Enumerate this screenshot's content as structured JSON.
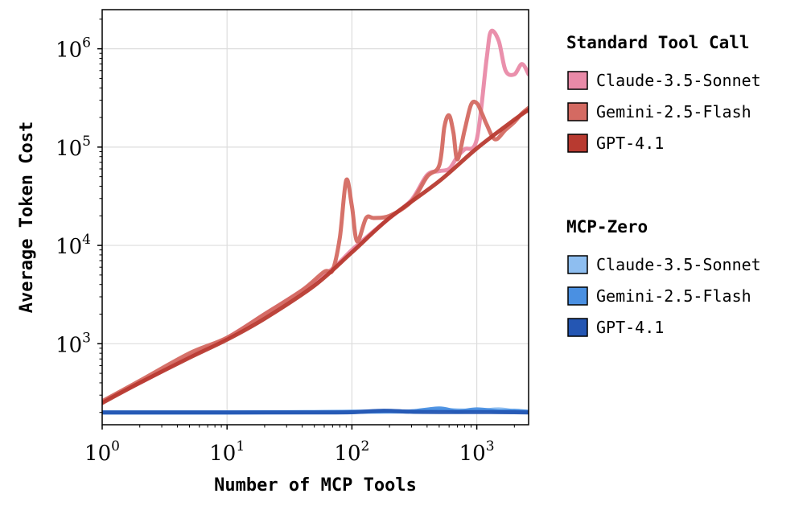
{
  "chart_data": {
    "type": "line",
    "xlabel": "Number of MCP Tools",
    "ylabel": "Average Token Cost",
    "x_scale": "log",
    "y_scale": "log",
    "xlim": [
      1,
      2600
    ],
    "ylim": [
      150,
      2500000
    ],
    "x_ticks": [
      {
        "base": "10",
        "exp": "0",
        "value": 1
      },
      {
        "base": "10",
        "exp": "1",
        "value": 10
      },
      {
        "base": "10",
        "exp": "2",
        "value": 100
      },
      {
        "base": "10",
        "exp": "3",
        "value": 1000
      }
    ],
    "y_ticks": [
      {
        "base": "10",
        "exp": "3",
        "value": 1000
      },
      {
        "base": "10",
        "exp": "4",
        "value": 10000
      },
      {
        "base": "10",
        "exp": "5",
        "value": 100000
      },
      {
        "base": "10",
        "exp": "6",
        "value": 1000000
      }
    ],
    "grid": true,
    "legend_position": "outside-right",
    "legend_groups": [
      {
        "title": "Standard Tool Call",
        "series": [
          {
            "name": "Claude-3.5-Sonnet",
            "color": "#e98aa8",
            "x": [
              1,
              2,
              5,
              10,
              20,
              40,
              70,
              100,
              150,
              200,
              300,
              400,
              500,
              600,
              700,
              800,
              1000,
              1200,
              1300,
              1500,
              1700,
              2000,
              2300,
              2600
            ],
            "y": [
              260,
              400,
              750,
              1150,
              2000,
              3500,
              5800,
              9000,
              14000,
              19000,
              29000,
              52000,
              57000,
              60000,
              80000,
              95000,
              120000,
              800000,
              1500000,
              1200000,
              600000,
              550000,
              700000,
              550000
            ]
          },
          {
            "name": "Gemini-2.5-Flash",
            "color": "#d46a62",
            "x": [
              1,
              2,
              5,
              10,
              20,
              40,
              60,
              70,
              80,
              90,
              100,
              110,
              130,
              150,
              200,
              300,
              400,
              500,
              550,
              600,
              650,
              700,
              800,
              900,
              1000,
              1100,
              1200,
              1400,
              1700,
              2000,
              2300,
              2600
            ],
            "y": [
              260,
              420,
              800,
              1150,
              2000,
              3500,
              5400,
              5600,
              12000,
              46000,
              25000,
              11000,
              19000,
              19000,
              20000,
              28000,
              50000,
              65000,
              160000,
              210000,
              140000,
              75000,
              150000,
              270000,
              280000,
              220000,
              170000,
              120000,
              150000,
              180000,
              220000,
              250000
            ]
          },
          {
            "name": "GPT-4.1",
            "color": "#b83a30",
            "x": [
              1,
              2,
              5,
              10,
              20,
              50,
              100,
              200,
              500,
              1000,
              2000,
              2600
            ],
            "y": [
              250,
              400,
              720,
              1100,
              1800,
              3900,
              8500,
              19000,
              45000,
              97000,
              190000,
              240000
            ]
          }
        ]
      },
      {
        "title": "MCP-Zero",
        "series": [
          {
            "name": "Claude-3.5-Sonnet",
            "color": "#8ebef0",
            "x": [
              1,
              10,
              50,
              100,
              300,
              500,
              1000,
              1500,
              2000,
              2600
            ],
            "y": [
              200,
              200,
              201,
              203,
              205,
              212,
              208,
              215,
              206,
              203
            ]
          },
          {
            "name": "Gemini-2.5-Flash",
            "color": "#4a90e2",
            "x": [
              1,
              10,
              50,
              100,
              200,
              300,
              500,
              700,
              1000,
              1500,
              2000,
              2600
            ],
            "y": [
              200,
              200,
              202,
              203,
              206,
              205,
              220,
              205,
              215,
              206,
              208,
              203
            ]
          },
          {
            "name": "GPT-4.1",
            "color": "#2456b3",
            "x": [
              1,
              10,
              50,
              100,
              180,
              300,
              500,
              1000,
              2000,
              2600
            ],
            "y": [
              200,
              200,
              200,
              201,
              208,
              203,
              202,
              202,
              201,
              200
            ]
          }
        ]
      }
    ]
  }
}
